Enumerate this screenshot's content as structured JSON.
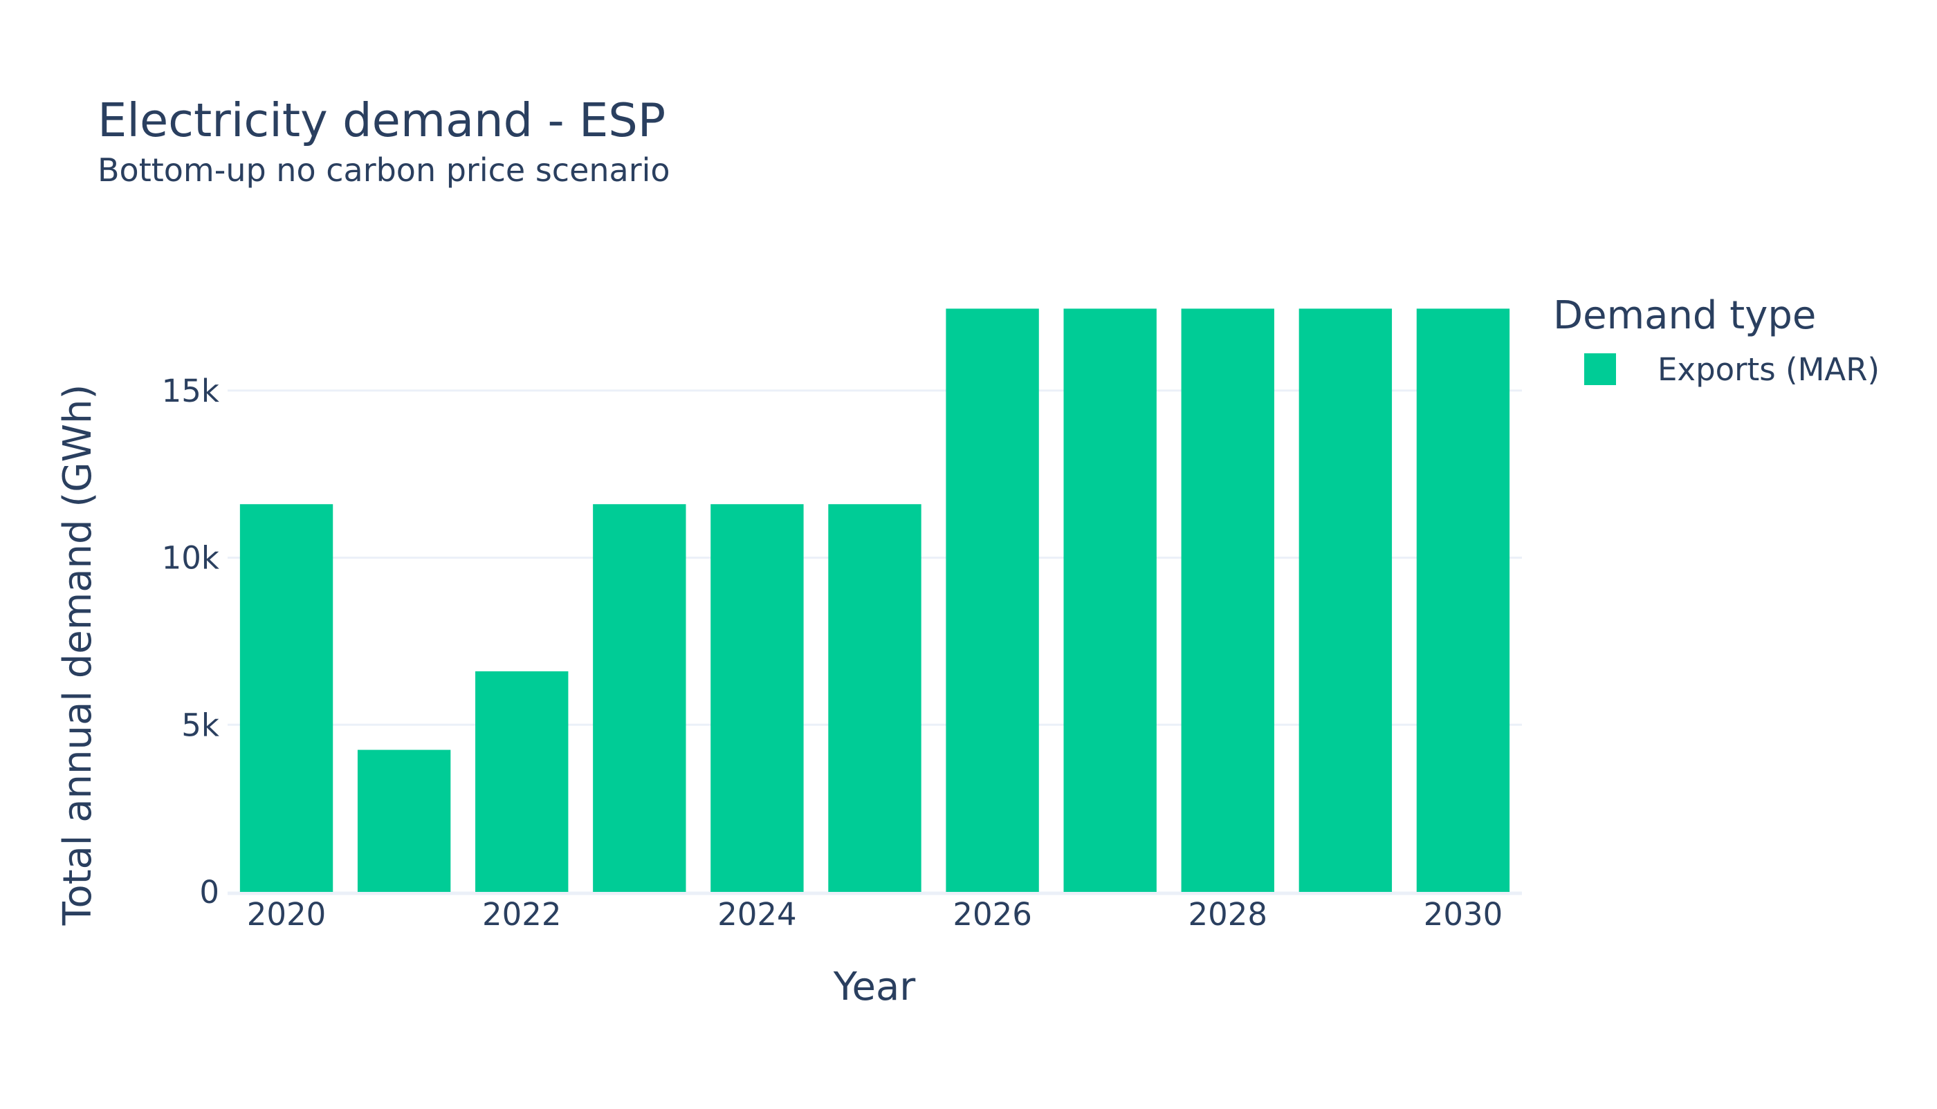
{
  "chart_data": {
    "type": "bar",
    "title": "Electricity demand - ESP",
    "subtitle": "Bottom-up no carbon price scenario",
    "xlabel": "Year",
    "ylabel": "Total annual demand (GWh)",
    "categories": [
      2020,
      2021,
      2022,
      2023,
      2024,
      2025,
      2026,
      2027,
      2028,
      2029,
      2030
    ],
    "x_tick_labels": [
      "2020",
      "2022",
      "2024",
      "2026",
      "2028",
      "2030"
    ],
    "y_tick_labels": [
      "0",
      "5k",
      "10k",
      "15k"
    ],
    "y_ticks": [
      0,
      5000,
      10000,
      15000
    ],
    "ylim": [
      0,
      17500
    ],
    "grid": true,
    "legend_position": "right",
    "legend_title": "Demand type",
    "series": [
      {
        "name": "Exports (MAR)",
        "color": "#00cc96",
        "values": [
          11600,
          4250,
          6600,
          11600,
          11600,
          11600,
          17450,
          17450,
          17450,
          17450,
          17450
        ]
      }
    ]
  }
}
